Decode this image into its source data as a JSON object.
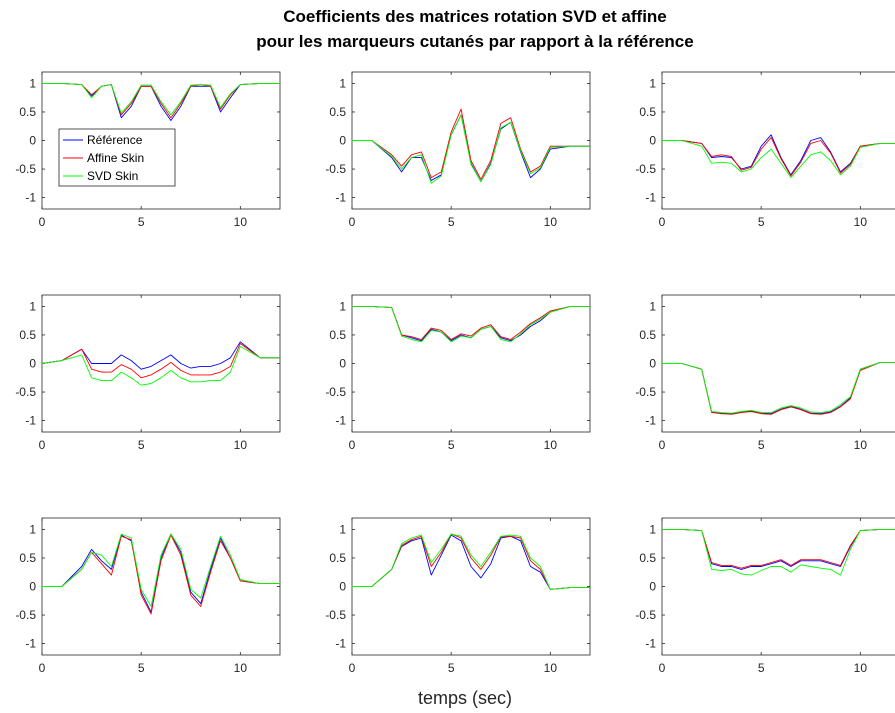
{
  "title_line1": "Coefficients des matrices rotation SVD et affine",
  "title_line2": "pour les marqueurs cutanés  par rapport à la référence",
  "xlabel": "temps (sec)",
  "legend": [
    "Référence",
    "Affine Skin",
    "SVD Skin"
  ],
  "colors": [
    "#0000ff",
    "#ff0000",
    "#00ff00"
  ],
  "chart_data": {
    "type": "line",
    "layout": "3x3 grid",
    "xlim": [
      0,
      12
    ],
    "ylim": [
      -1.2,
      1.2
    ],
    "xticks": [
      0,
      5,
      10
    ],
    "yticks": [
      1,
      0.5,
      0,
      -0.5,
      -1
    ],
    "grid": false,
    "legend_location": "left, first subplot",
    "series_names": [
      "Référence",
      "Affine Skin",
      "SVD Skin"
    ],
    "x": [
      0,
      1,
      2,
      2.5,
      3,
      3.5,
      4,
      4.5,
      5,
      5.5,
      6,
      6.5,
      7,
      7.5,
      8,
      8.5,
      9,
      9.5,
      10,
      11,
      12
    ],
    "panels": [
      {
        "series": [
          {
            "name": "Référence",
            "values": [
              1,
              1,
              0.98,
              0.78,
              0.95,
              0.98,
              0.4,
              0.6,
              0.95,
              0.95,
              0.6,
              0.35,
              0.6,
              0.95,
              0.95,
              0.95,
              0.5,
              0.75,
              0.98,
              1,
              1
            ]
          },
          {
            "name": "Affine Skin",
            "values": [
              1,
              1,
              0.98,
              0.8,
              0.95,
              0.98,
              0.45,
              0.65,
              0.95,
              0.95,
              0.65,
              0.4,
              0.65,
              0.95,
              0.98,
              0.95,
              0.55,
              0.8,
              0.98,
              1,
              1
            ]
          },
          {
            "name": "SVD Skin",
            "values": [
              1,
              1,
              0.98,
              0.75,
              0.95,
              0.98,
              0.48,
              0.68,
              0.97,
              0.97,
              0.68,
              0.45,
              0.68,
              0.97,
              0.98,
              0.97,
              0.58,
              0.82,
              0.98,
              1,
              1
            ]
          }
        ]
      },
      {
        "series": [
          {
            "name": "Référence",
            "values": [
              0,
              0,
              -0.3,
              -0.55,
              -0.3,
              -0.3,
              -0.7,
              -0.6,
              0.1,
              0.45,
              -0.4,
              -0.72,
              -0.4,
              0.2,
              0.32,
              -0.2,
              -0.65,
              -0.5,
              -0.15,
              -0.1,
              -0.1
            ]
          },
          {
            "name": "Affine Skin",
            "values": [
              0,
              0,
              -0.25,
              -0.45,
              -0.25,
              -0.2,
              -0.65,
              -0.55,
              0.15,
              0.55,
              -0.35,
              -0.68,
              -0.35,
              0.3,
              0.4,
              -0.15,
              -0.55,
              -0.45,
              -0.1,
              -0.1,
              -0.1
            ]
          },
          {
            "name": "SVD Skin",
            "values": [
              0,
              0,
              -0.28,
              -0.5,
              -0.3,
              -0.25,
              -0.75,
              -0.62,
              0.1,
              0.45,
              -0.42,
              -0.72,
              -0.42,
              0.22,
              0.32,
              -0.18,
              -0.58,
              -0.48,
              -0.12,
              -0.1,
              -0.1
            ]
          }
        ]
      },
      {
        "series": [
          {
            "name": "Référence",
            "values": [
              0,
              0,
              -0.05,
              -0.3,
              -0.28,
              -0.3,
              -0.5,
              -0.45,
              -0.1,
              0.1,
              -0.3,
              -0.6,
              -0.35,
              0,
              0.05,
              -0.2,
              -0.55,
              -0.4,
              -0.1,
              -0.05,
              -0.05
            ]
          },
          {
            "name": "Affine Skin",
            "values": [
              0,
              0,
              -0.05,
              -0.28,
              -0.25,
              -0.28,
              -0.52,
              -0.47,
              -0.15,
              0.05,
              -0.32,
              -0.62,
              -0.38,
              -0.05,
              0,
              -0.22,
              -0.57,
              -0.42,
              -0.1,
              -0.05,
              -0.05
            ]
          },
          {
            "name": "SVD Skin",
            "values": [
              0,
              0,
              -0.1,
              -0.4,
              -0.38,
              -0.4,
              -0.55,
              -0.5,
              -0.3,
              -0.15,
              -0.4,
              -0.65,
              -0.45,
              -0.25,
              -0.2,
              -0.35,
              -0.6,
              -0.45,
              -0.12,
              -0.05,
              -0.05
            ]
          }
        ]
      },
      {
        "series": [
          {
            "name": "Référence",
            "values": [
              0,
              0.05,
              0.25,
              0,
              0,
              0,
              0.15,
              0.05,
              -0.1,
              -0.05,
              0.05,
              0.15,
              0,
              -0.08,
              -0.05,
              -0.05,
              0,
              0.1,
              0.38,
              0.1,
              0.1
            ]
          },
          {
            "name": "Affine Skin",
            "values": [
              0,
              0.05,
              0.25,
              -0.1,
              -0.15,
              -0.15,
              -0.02,
              -0.1,
              -0.25,
              -0.2,
              -0.1,
              0.02,
              -0.12,
              -0.2,
              -0.2,
              -0.2,
              -0.15,
              -0.05,
              0.35,
              0.1,
              0.1
            ]
          },
          {
            "name": "SVD Skin",
            "values": [
              0,
              0.05,
              0.15,
              -0.25,
              -0.3,
              -0.3,
              -0.15,
              -0.25,
              -0.38,
              -0.35,
              -0.25,
              -0.12,
              -0.25,
              -0.32,
              -0.32,
              -0.3,
              -0.3,
              -0.15,
              0.3,
              0.1,
              0.1
            ]
          }
        ]
      },
      {
        "series": [
          {
            "name": "Référence",
            "values": [
              1,
              1,
              0.98,
              0.5,
              0.45,
              0.4,
              0.6,
              0.55,
              0.4,
              0.5,
              0.45,
              0.6,
              0.65,
              0.45,
              0.4,
              0.5,
              0.65,
              0.75,
              0.9,
              1,
              1
            ]
          },
          {
            "name": "Affine Skin",
            "values": [
              1,
              1,
              0.98,
              0.5,
              0.47,
              0.42,
              0.62,
              0.58,
              0.42,
              0.52,
              0.48,
              0.62,
              0.68,
              0.47,
              0.42,
              0.55,
              0.7,
              0.8,
              0.92,
              1,
              1
            ]
          },
          {
            "name": "SVD Skin",
            "values": [
              1,
              1,
              0.98,
              0.48,
              0.42,
              0.38,
              0.58,
              0.55,
              0.38,
              0.48,
              0.45,
              0.6,
              0.65,
              0.42,
              0.38,
              0.52,
              0.68,
              0.78,
              0.9,
              1,
              1
            ]
          }
        ]
      },
      {
        "series": [
          {
            "name": "Référence",
            "values": [
              0,
              0,
              -0.1,
              -0.85,
              -0.87,
              -0.88,
              -0.85,
              -0.83,
              -0.87,
              -0.88,
              -0.8,
              -0.75,
              -0.8,
              -0.87,
              -0.88,
              -0.85,
              -0.75,
              -0.6,
              -0.1,
              0.02,
              0.02
            ]
          },
          {
            "name": "Affine Skin",
            "values": [
              0,
              0,
              -0.1,
              -0.86,
              -0.88,
              -0.89,
              -0.86,
              -0.84,
              -0.88,
              -0.89,
              -0.81,
              -0.76,
              -0.81,
              -0.88,
              -0.89,
              -0.86,
              -0.76,
              -0.62,
              -0.12,
              0.02,
              0.02
            ]
          },
          {
            "name": "SVD Skin",
            "values": [
              0,
              0,
              -0.1,
              -0.84,
              -0.86,
              -0.87,
              -0.84,
              -0.82,
              -0.86,
              -0.86,
              -0.78,
              -0.74,
              -0.78,
              -0.85,
              -0.86,
              -0.83,
              -0.72,
              -0.58,
              -0.1,
              0.02,
              0.02
            ]
          }
        ]
      },
      {
        "series": [
          {
            "name": "Référence",
            "values": [
              0,
              0,
              0.35,
              0.65,
              0.45,
              0.3,
              0.9,
              0.8,
              -0.1,
              -0.45,
              0.5,
              0.92,
              0.6,
              -0.1,
              -0.3,
              0.3,
              0.85,
              0.5,
              0.1,
              0.05,
              0.05
            ]
          },
          {
            "name": "Affine Skin",
            "values": [
              0,
              0,
              0.3,
              0.6,
              0.4,
              0.2,
              0.88,
              0.82,
              -0.15,
              -0.48,
              0.45,
              0.9,
              0.55,
              -0.15,
              -0.35,
              0.25,
              0.8,
              0.5,
              0.1,
              0.05,
              0.05
            ]
          },
          {
            "name": "SVD Skin",
            "values": [
              0,
              0,
              0.3,
              0.6,
              0.55,
              0.35,
              0.92,
              0.85,
              -0.05,
              -0.35,
              0.55,
              0.92,
              0.65,
              -0.05,
              -0.2,
              0.35,
              0.88,
              0.55,
              0.12,
              0.05,
              0.05
            ]
          }
        ]
      },
      {
        "series": [
          {
            "name": "Référence",
            "values": [
              0,
              0,
              0.3,
              0.7,
              0.8,
              0.85,
              0.2,
              0.55,
              0.9,
              0.8,
              0.35,
              0.15,
              0.4,
              0.85,
              0.88,
              0.8,
              0.35,
              0.25,
              -0.05,
              -0.02,
              -0.02
            ]
          },
          {
            "name": "Affine Skin",
            "values": [
              0,
              0,
              0.3,
              0.72,
              0.82,
              0.88,
              0.35,
              0.6,
              0.92,
              0.85,
              0.5,
              0.3,
              0.55,
              0.87,
              0.88,
              0.85,
              0.45,
              0.3,
              -0.05,
              -0.02,
              -0.02
            ]
          },
          {
            "name": "SVD Skin",
            "values": [
              0,
              0,
              0.3,
              0.75,
              0.85,
              0.9,
              0.42,
              0.65,
              0.92,
              0.88,
              0.55,
              0.35,
              0.6,
              0.88,
              0.9,
              0.88,
              0.5,
              0.35,
              -0.05,
              -0.02,
              -0.02
            ]
          }
        ]
      },
      {
        "series": [
          {
            "name": "Référence",
            "values": [
              1,
              1,
              0.98,
              0.4,
              0.35,
              0.35,
              0.3,
              0.35,
              0.35,
              0.4,
              0.45,
              0.35,
              0.45,
              0.45,
              0.45,
              0.4,
              0.35,
              0.7,
              0.98,
              1,
              1
            ]
          },
          {
            "name": "Affine Skin",
            "values": [
              1,
              1,
              0.98,
              0.42,
              0.37,
              0.37,
              0.32,
              0.37,
              0.37,
              0.42,
              0.47,
              0.37,
              0.47,
              0.47,
              0.47,
              0.42,
              0.37,
              0.72,
              0.98,
              1,
              1
            ]
          },
          {
            "name": "SVD Skin",
            "values": [
              1,
              1,
              0.98,
              0.3,
              0.28,
              0.3,
              0.22,
              0.2,
              0.28,
              0.35,
              0.35,
              0.25,
              0.38,
              0.35,
              0.32,
              0.3,
              0.2,
              0.65,
              0.98,
              1,
              1
            ]
          }
        ]
      }
    ]
  }
}
